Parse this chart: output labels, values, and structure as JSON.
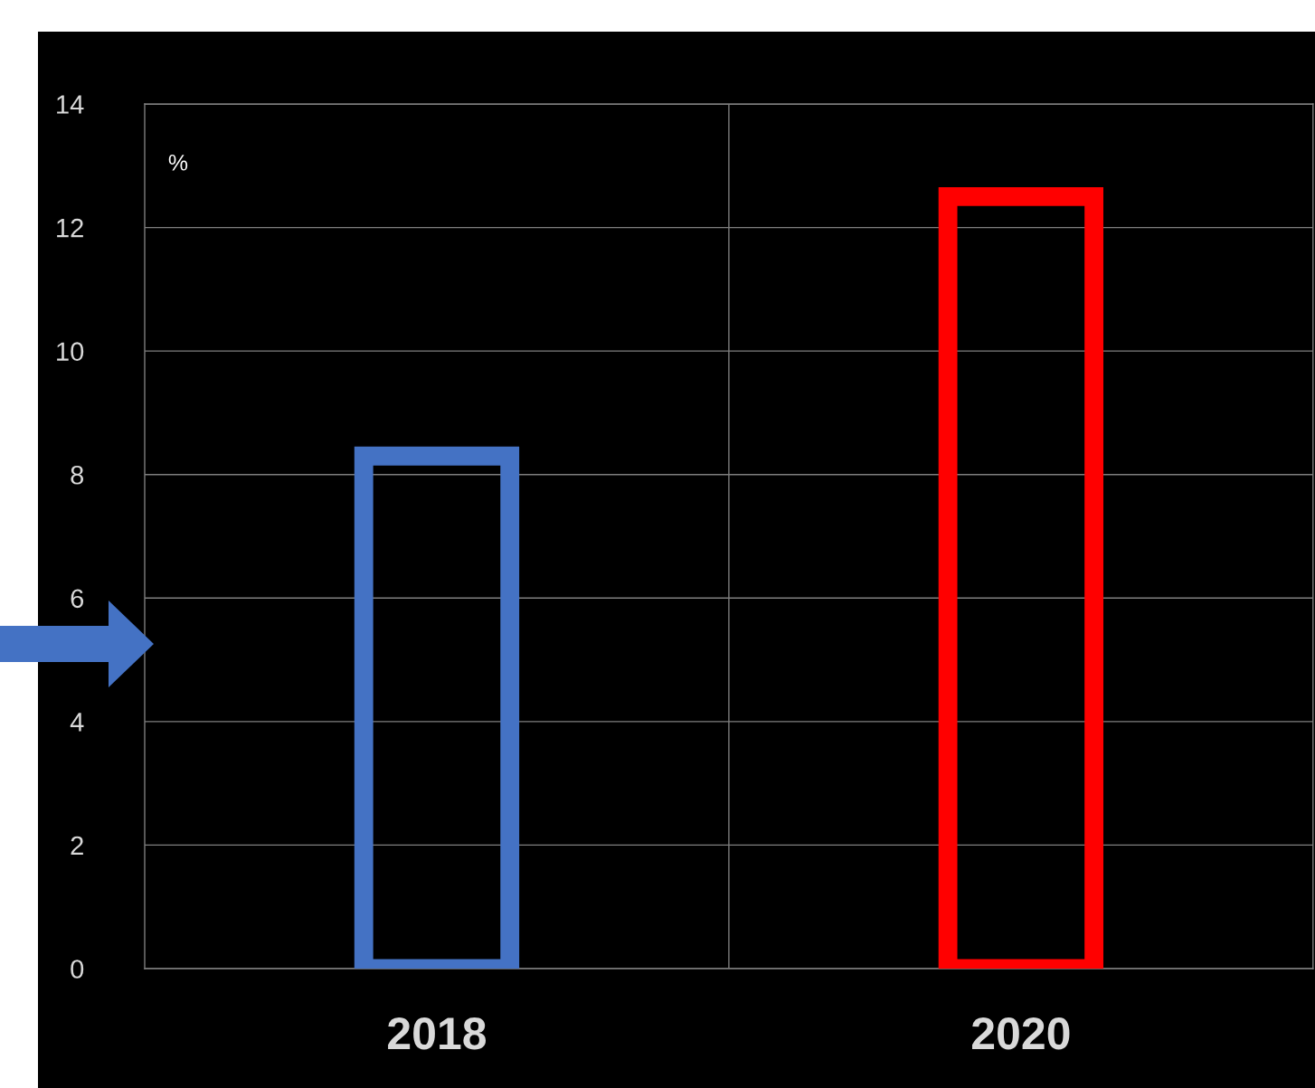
{
  "chart_data": {
    "type": "bar",
    "categories": [
      "2018",
      "2020"
    ],
    "values": [
      8.3,
      12.5
    ],
    "colors": [
      "#4472c4",
      "#ff0000"
    ],
    "ylim": [
      0,
      14
    ],
    "yticks": [
      0,
      2,
      4,
      6,
      8,
      10,
      12,
      14
    ],
    "grid": true,
    "annotations": [
      "%"
    ]
  }
}
